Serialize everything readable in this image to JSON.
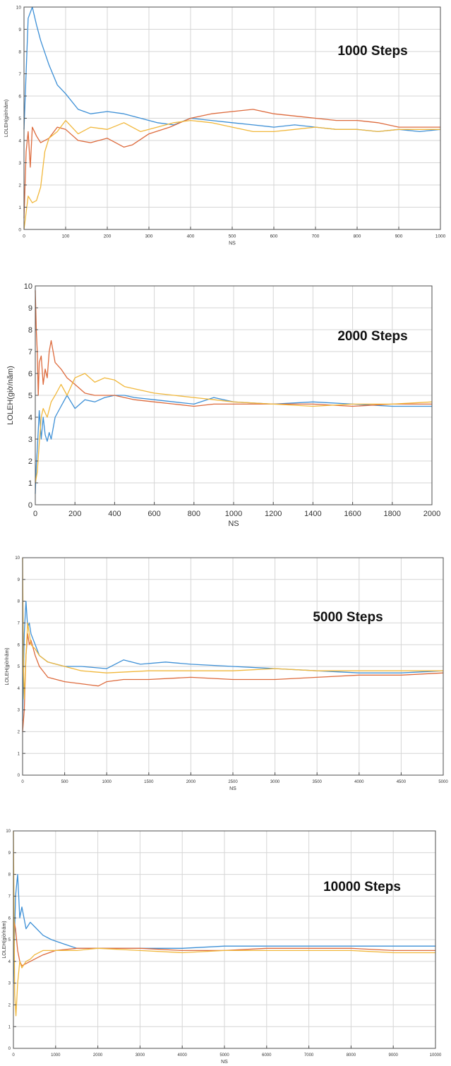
{
  "colors": {
    "series_blue": "#3c8fd6",
    "series_orange": "#dd6a3c",
    "series_yellow": "#f1b73a",
    "grid": "#d6d6d6",
    "axis": "#4d4d4d"
  },
  "chart_data": [
    {
      "type": "line",
      "annotation": "1000 Steps",
      "xlabel": "NS",
      "ylabel": "LOLEH(giờ/năm)",
      "xlim": [
        0,
        1000
      ],
      "ylim": [
        0,
        10
      ],
      "xticks": [
        0,
        100,
        200,
        300,
        400,
        500,
        600,
        700,
        800,
        900,
        1000
      ],
      "xtick_labels": [
        "0",
        "100",
        "200",
        "300",
        "400",
        "500",
        "600",
        "700",
        "800",
        "900",
        "1000"
      ],
      "yticks": [
        0,
        1,
        2,
        3,
        4,
        5,
        6,
        7,
        8,
        9,
        10
      ],
      "ytick_labels": [
        "0",
        "1",
        "2",
        "3",
        "4",
        "5",
        "6",
        "7",
        "8",
        "9",
        "10"
      ],
      "grid": true,
      "series": [
        {
          "color": "#3c8fd6",
          "x": [
            0,
            10,
            20,
            30,
            40,
            60,
            80,
            100,
            130,
            160,
            200,
            240,
            280,
            320,
            360,
            400,
            450,
            500,
            550,
            600,
            650,
            700,
            750,
            800,
            850,
            900,
            950,
            1000
          ],
          "y": [
            4.5,
            9.5,
            10,
            9.2,
            8.5,
            7.4,
            6.5,
            6.1,
            5.4,
            5.2,
            5.3,
            5.2,
            5.0,
            4.8,
            4.7,
            5.0,
            4.9,
            4.8,
            4.7,
            4.6,
            4.7,
            4.6,
            4.5,
            4.5,
            4.4,
            4.5,
            4.4,
            4.5
          ]
        },
        {
          "color": "#dd6a3c",
          "x": [
            0,
            5,
            10,
            15,
            20,
            30,
            40,
            60,
            80,
            100,
            130,
            160,
            200,
            240,
            260,
            300,
            350,
            400,
            450,
            500,
            550,
            600,
            650,
            700,
            750,
            800,
            850,
            900,
            950,
            1000
          ],
          "y": [
            0.5,
            3.5,
            4.4,
            2.8,
            4.6,
            4.2,
            3.9,
            4.1,
            4.6,
            4.5,
            4.0,
            3.9,
            4.1,
            3.7,
            3.8,
            4.3,
            4.6,
            5.0,
            5.2,
            5.3,
            5.4,
            5.2,
            5.1,
            5.0,
            4.9,
            4.9,
            4.8,
            4.6,
            4.6,
            4.6
          ]
        },
        {
          "color": "#f1b73a",
          "x": [
            0,
            10,
            20,
            30,
            40,
            50,
            60,
            80,
            100,
            130,
            160,
            200,
            240,
            280,
            320,
            360,
            400,
            450,
            500,
            550,
            600,
            650,
            700,
            750,
            800,
            850,
            900,
            950,
            1000
          ],
          "y": [
            0.0,
            1.5,
            1.2,
            1.3,
            1.9,
            3.5,
            4.1,
            4.4,
            4.9,
            4.3,
            4.6,
            4.5,
            4.8,
            4.4,
            4.6,
            4.8,
            4.9,
            4.8,
            4.6,
            4.4,
            4.4,
            4.5,
            4.6,
            4.5,
            4.5,
            4.4,
            4.5,
            4.5,
            4.5
          ]
        }
      ]
    },
    {
      "type": "line",
      "annotation": "2000 Steps",
      "xlabel": "NS",
      "ylabel": "LOLEH(giờ/năm)",
      "xlim": [
        0,
        2000
      ],
      "ylim": [
        0,
        10
      ],
      "xticks": [
        0,
        200,
        400,
        600,
        800,
        1000,
        1200,
        1400,
        1600,
        1800,
        2000
      ],
      "xtick_labels": [
        "0",
        "200",
        "400",
        "600",
        "800",
        "1000",
        "1200",
        "1400",
        "1600",
        "1800",
        "2000"
      ],
      "yticks": [
        0,
        1,
        2,
        3,
        4,
        5,
        6,
        7,
        8,
        9,
        10
      ],
      "ytick_labels": [
        "0",
        "1",
        "2",
        "3",
        "4",
        "5",
        "6",
        "7",
        "8",
        "9",
        "10"
      ],
      "grid": true,
      "series": [
        {
          "color": "#3c8fd6",
          "x": [
            0,
            5,
            10,
            20,
            30,
            40,
            50,
            60,
            70,
            80,
            100,
            130,
            160,
            200,
            250,
            300,
            350,
            400,
            450,
            500,
            600,
            700,
            800,
            900,
            1000,
            1200,
            1400,
            1600,
            1800,
            2000
          ],
          "y": [
            0.5,
            1.8,
            2.5,
            4.3,
            3.0,
            4.0,
            3.2,
            2.9,
            3.3,
            3.0,
            4.0,
            4.5,
            5.0,
            4.4,
            4.8,
            4.7,
            4.9,
            5.0,
            5.0,
            4.9,
            4.8,
            4.7,
            4.6,
            4.9,
            4.7,
            4.6,
            4.7,
            4.6,
            4.5,
            4.5
          ]
        },
        {
          "color": "#dd6a3c",
          "x": [
            0,
            5,
            10,
            15,
            20,
            30,
            40,
            50,
            60,
            70,
            80,
            100,
            130,
            160,
            200,
            250,
            300,
            400,
            500,
            600,
            700,
            800,
            900,
            1000,
            1200,
            1400,
            1600,
            1800,
            2000
          ],
          "y": [
            9.8,
            8.0,
            7.0,
            5.0,
            6.5,
            6.8,
            5.5,
            6.2,
            5.8,
            7.0,
            7.5,
            6.5,
            6.2,
            5.8,
            5.5,
            5.1,
            5.0,
            5.0,
            4.8,
            4.7,
            4.6,
            4.5,
            4.6,
            4.6,
            4.6,
            4.6,
            4.5,
            4.6,
            4.6
          ]
        },
        {
          "color": "#f1b73a",
          "x": [
            0,
            10,
            20,
            30,
            40,
            60,
            80,
            100,
            130,
            160,
            200,
            250,
            300,
            350,
            400,
            450,
            500,
            600,
            700,
            800,
            900,
            1000,
            1200,
            1400,
            1600,
            1800,
            2000
          ],
          "y": [
            1.0,
            1.5,
            2.8,
            4.0,
            4.4,
            4.0,
            4.7,
            5.0,
            5.5,
            5.0,
            5.8,
            6.0,
            5.6,
            5.8,
            5.7,
            5.4,
            5.3,
            5.1,
            5.0,
            4.9,
            4.8,
            4.7,
            4.6,
            4.5,
            4.6,
            4.6,
            4.7
          ]
        }
      ]
    },
    {
      "type": "line",
      "annotation": "5000 Steps",
      "xlabel": "NS",
      "ylabel": "LOLEH(giờ/năm)",
      "xlim": [
        0,
        5000
      ],
      "ylim": [
        0,
        10
      ],
      "xticks": [
        0,
        500,
        1000,
        1500,
        2000,
        2500,
        3000,
        3500,
        4000,
        4500,
        5000
      ],
      "xtick_labels": [
        "0",
        "500",
        "1000",
        "1500",
        "2000",
        "2500",
        "3000",
        "3500",
        "4000",
        "4500",
        "5000"
      ],
      "yticks": [
        0,
        1,
        2,
        3,
        4,
        5,
        6,
        7,
        8,
        9,
        10
      ],
      "ytick_labels": [
        "0",
        "1",
        "2",
        "3",
        "4",
        "5",
        "6",
        "7",
        "8",
        "9",
        "10"
      ],
      "grid": true,
      "series": [
        {
          "color": "#3c8fd6",
          "x": [
            0,
            20,
            40,
            60,
            80,
            100,
            150,
            200,
            300,
            500,
            700,
            1000,
            1200,
            1400,
            1700,
            2000,
            2500,
            3000,
            3500,
            4000,
            4500,
            5000
          ],
          "y": [
            2.5,
            6.5,
            8.0,
            6.8,
            7.0,
            6.5,
            6.0,
            5.5,
            5.2,
            5.0,
            5.0,
            4.9,
            5.3,
            5.1,
            5.2,
            5.1,
            5.0,
            4.9,
            4.8,
            4.7,
            4.7,
            4.8
          ]
        },
        {
          "color": "#dd6a3c",
          "x": [
            0,
            20,
            40,
            60,
            80,
            100,
            150,
            200,
            300,
            500,
            700,
            900,
            1000,
            1200,
            1500,
            2000,
            2500,
            3000,
            3500,
            4000,
            4500,
            5000
          ],
          "y": [
            2.0,
            3.0,
            5.5,
            6.5,
            6.0,
            6.2,
            5.5,
            5.0,
            4.5,
            4.3,
            4.2,
            4.1,
            4.3,
            4.4,
            4.4,
            4.5,
            4.4,
            4.4,
            4.5,
            4.6,
            4.6,
            4.7
          ]
        },
        {
          "color": "#f1b73a",
          "x": [
            0,
            10,
            20,
            40,
            60,
            80,
            100,
            150,
            200,
            300,
            500,
            700,
            1000,
            1500,
            2000,
            2500,
            3000,
            3500,
            4000,
            4500,
            5000
          ],
          "y": [
            10.0,
            5.0,
            3.5,
            5.5,
            7.0,
            6.5,
            6.0,
            5.8,
            5.5,
            5.2,
            5.0,
            4.8,
            4.7,
            4.8,
            4.8,
            4.8,
            4.9,
            4.8,
            4.8,
            4.8,
            4.8
          ]
        }
      ]
    },
    {
      "type": "line",
      "annotation": "10000 Steps",
      "xlabel": "NS",
      "ylabel": "LOLEH(giờ/năm)",
      "xlim": [
        0,
        10000
      ],
      "ylim": [
        0,
        10
      ],
      "xticks": [
        0,
        1000,
        2000,
        3000,
        4000,
        5000,
        6000,
        7000,
        8000,
        9000,
        10000
      ],
      "xtick_labels": [
        "0",
        "1000",
        "2000",
        "3000",
        "4000",
        "5000",
        "6000",
        "7000",
        "8000",
        "9000",
        "10000"
      ],
      "yticks": [
        0,
        1,
        2,
        3,
        4,
        5,
        6,
        7,
        8,
        9,
        10
      ],
      "ytick_labels": [
        "0",
        "1",
        "2",
        "3",
        "4",
        "5",
        "6",
        "7",
        "8",
        "9",
        "10"
      ],
      "grid": true,
      "series": [
        {
          "color": "#3c8fd6",
          "x": [
            0,
            50,
            100,
            150,
            200,
            300,
            400,
            500,
            700,
            900,
            1200,
            1500,
            2000,
            3000,
            4000,
            5000,
            6000,
            7000,
            8000,
            9000,
            10000
          ],
          "y": [
            3.0,
            7.0,
            8.0,
            6.0,
            6.5,
            5.5,
            5.8,
            5.6,
            5.2,
            5.0,
            4.8,
            4.6,
            4.6,
            4.6,
            4.6,
            4.7,
            4.7,
            4.7,
            4.7,
            4.7,
            4.7
          ]
        },
        {
          "color": "#dd6a3c",
          "x": [
            0,
            50,
            100,
            150,
            200,
            300,
            400,
            500,
            700,
            1000,
            1500,
            2000,
            3000,
            4000,
            5000,
            6000,
            7000,
            8000,
            9000,
            10000
          ],
          "y": [
            6.0,
            5.5,
            4.5,
            4.0,
            3.8,
            3.9,
            4.0,
            4.1,
            4.3,
            4.5,
            4.6,
            4.6,
            4.6,
            4.5,
            4.5,
            4.6,
            4.6,
            4.6,
            4.5,
            4.5
          ]
        },
        {
          "color": "#f1b73a",
          "x": [
            0,
            30,
            60,
            100,
            150,
            200,
            300,
            400,
            500,
            700,
            1000,
            1500,
            2000,
            3000,
            4000,
            5000,
            6000,
            7000,
            8000,
            9000,
            10000
          ],
          "y": [
            10.0,
            2.5,
            1.5,
            3.0,
            4.0,
            3.7,
            4.0,
            4.1,
            4.3,
            4.5,
            4.5,
            4.5,
            4.6,
            4.5,
            4.4,
            4.5,
            4.5,
            4.5,
            4.5,
            4.4,
            4.4
          ]
        }
      ]
    }
  ]
}
